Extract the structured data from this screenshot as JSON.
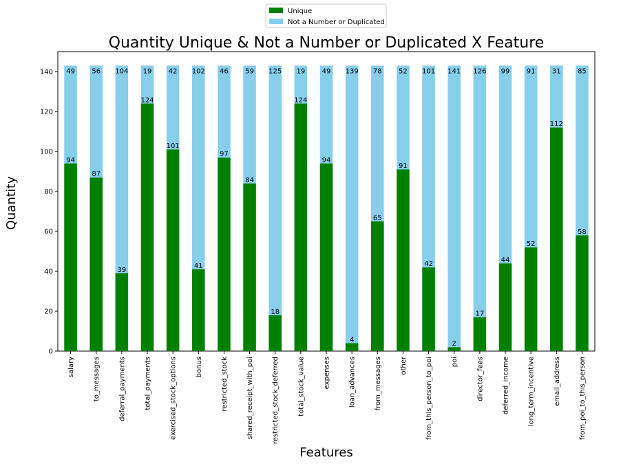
{
  "chart_data": {
    "type": "bar",
    "stacked": true,
    "title": "Quantity Unique & Not a Number or Duplicated X Feature",
    "xlabel": "Features",
    "ylabel": "Quantity",
    "ylim": [
      0,
      150
    ],
    "yticks": [
      0,
      20,
      40,
      60,
      80,
      100,
      120,
      140
    ],
    "legend_position": "top-center (outside plot)",
    "categories": [
      "salary",
      "to_messages",
      "deferral_payments",
      "total_payments",
      "exercised_stock_options",
      "bonus",
      "restricted_stock",
      "shared_receipt_with_poi",
      "restricted_stock_deferred",
      "total_stock_value",
      "expenses",
      "loan_advances",
      "from_messages",
      "other",
      "from_this_person_to_poi",
      "poi",
      "director_fees",
      "deferred_income",
      "long_term_incentive",
      "email_address",
      "from_poi_to_this_person"
    ],
    "series": [
      {
        "name": "Unique",
        "color": "#008000",
        "values": [
          94,
          87,
          39,
          124,
          101,
          41,
          97,
          84,
          18,
          124,
          94,
          4,
          65,
          91,
          42,
          2,
          17,
          44,
          52,
          112,
          58
        ]
      },
      {
        "name": "Not a Number or Duplicated",
        "color": "#87ceeb",
        "values": [
          49,
          56,
          104,
          19,
          42,
          102,
          46,
          59,
          125,
          19,
          49,
          139,
          78,
          52,
          101,
          141,
          126,
          99,
          91,
          31,
          85
        ]
      }
    ]
  }
}
